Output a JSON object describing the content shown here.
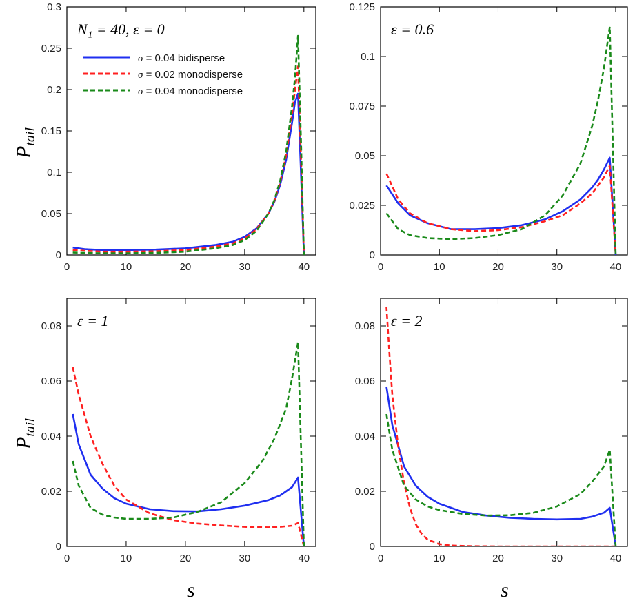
{
  "figure": {
    "ylabel_main": "P",
    "ylabel_sub": "tail",
    "xlabel": "s"
  },
  "legend": {
    "items": [
      {
        "symbol": "σ",
        "text": " = 0.04 bidisperse",
        "color": "#1f2ff0",
        "dash": "solid"
      },
      {
        "symbol": "σ",
        "text": " = 0.02 monodisperse",
        "color": "#ff2020",
        "dash": "dashed"
      },
      {
        "symbol": "σ",
        "text": " = 0.04 monodisperse",
        "color": "#1a8a1a",
        "dash": "dashed"
      }
    ]
  },
  "chart_data": [
    {
      "type": "line",
      "annotation": "N₁ = 40, ε = 0",
      "xlim": [
        0,
        42
      ],
      "ylim": [
        0,
        0.3
      ],
      "xticks": [
        0,
        10,
        20,
        30,
        40
      ],
      "yticks": [
        0,
        0.05,
        0.1,
        0.15,
        0.2,
        0.25,
        0.3
      ],
      "ytick_labels": [
        "0",
        "0.05",
        "0.1",
        "0.15",
        "0.2",
        "0.25",
        "0.3"
      ],
      "series": [
        {
          "name": "σ = 0.04 bidisperse",
          "color": "#1f2ff0",
          "dash": "solid",
          "x": [
            1,
            3,
            6,
            10,
            15,
            20,
            25,
            28,
            30,
            32,
            34,
            35,
            36,
            37,
            38,
            38.5,
            39,
            39.5,
            40
          ],
          "y": [
            0.009,
            0.007,
            0.006,
            0.006,
            0.0065,
            0.008,
            0.012,
            0.016,
            0.022,
            0.032,
            0.05,
            0.064,
            0.085,
            0.115,
            0.16,
            0.185,
            0.195,
            0.1,
            0
          ]
        },
        {
          "name": "σ = 0.02 monodisperse",
          "color": "#ff2020",
          "dash": "dashed",
          "x": [
            1,
            3,
            6,
            10,
            15,
            20,
            25,
            28,
            30,
            32,
            34,
            35,
            36,
            37,
            38,
            38.5,
            39,
            39.5,
            40
          ],
          "y": [
            0.006,
            0.005,
            0.004,
            0.004,
            0.0045,
            0.006,
            0.01,
            0.014,
            0.02,
            0.031,
            0.05,
            0.065,
            0.088,
            0.12,
            0.17,
            0.2,
            0.228,
            0.12,
            0
          ]
        },
        {
          "name": "σ = 0.04 monodisperse",
          "color": "#1a8a1a",
          "dash": "dashed",
          "x": [
            1,
            3,
            6,
            10,
            15,
            20,
            25,
            28,
            30,
            32,
            34,
            35,
            36,
            37,
            38,
            38.5,
            39,
            39.5,
            40
          ],
          "y": [
            0.003,
            0.0025,
            0.002,
            0.002,
            0.0025,
            0.004,
            0.008,
            0.012,
            0.018,
            0.029,
            0.05,
            0.066,
            0.09,
            0.125,
            0.18,
            0.215,
            0.265,
            0.14,
            0
          ]
        }
      ]
    },
    {
      "type": "line",
      "annotation": "ε = 0.6",
      "xlim": [
        0,
        42
      ],
      "ylim": [
        0,
        0.125
      ],
      "xticks": [
        0,
        10,
        20,
        30,
        40
      ],
      "yticks": [
        0,
        0.025,
        0.05,
        0.075,
        0.1,
        0.125
      ],
      "ytick_labels": [
        "0",
        "0.025",
        "0.05",
        "0.075",
        "0.1",
        "0.125"
      ],
      "series": [
        {
          "name": "σ = 0.04 bidisperse",
          "color": "#1f2ff0",
          "dash": "solid",
          "x": [
            1,
            3,
            5,
            8,
            12,
            16,
            20,
            24,
            28,
            31,
            34,
            36,
            37,
            38,
            39,
            40
          ],
          "y": [
            0.035,
            0.026,
            0.02,
            0.016,
            0.013,
            0.013,
            0.0135,
            0.015,
            0.018,
            0.022,
            0.028,
            0.034,
            0.038,
            0.043,
            0.049,
            0
          ]
        },
        {
          "name": "σ = 0.02 monodisperse",
          "color": "#ff2020",
          "dash": "dashed",
          "x": [
            1,
            3,
            5,
            8,
            12,
            16,
            20,
            24,
            28,
            31,
            34,
            36,
            37,
            38,
            39,
            40
          ],
          "y": [
            0.041,
            0.028,
            0.021,
            0.016,
            0.013,
            0.012,
            0.0125,
            0.014,
            0.017,
            0.02,
            0.026,
            0.031,
            0.035,
            0.039,
            0.045,
            0
          ]
        },
        {
          "name": "σ = 0.04 monodisperse",
          "color": "#1a8a1a",
          "dash": "dashed",
          "x": [
            1,
            3,
            5,
            8,
            12,
            16,
            20,
            24,
            28,
            31,
            34,
            36,
            37,
            38,
            39,
            40
          ],
          "y": [
            0.021,
            0.013,
            0.01,
            0.0085,
            0.008,
            0.0085,
            0.01,
            0.013,
            0.02,
            0.03,
            0.046,
            0.065,
            0.078,
            0.094,
            0.115,
            0
          ]
        }
      ]
    },
    {
      "type": "line",
      "annotation": "ε = 1",
      "xlim": [
        0,
        42
      ],
      "ylim": [
        0,
        0.09
      ],
      "xticks": [
        0,
        10,
        20,
        30,
        40
      ],
      "yticks": [
        0,
        0.02,
        0.04,
        0.06,
        0.08
      ],
      "ytick_labels": [
        "0",
        "0.02",
        "0.04",
        "0.06",
        "0.08"
      ],
      "series": [
        {
          "name": "σ = 0.04 bidisperse",
          "color": "#1f2ff0",
          "dash": "solid",
          "x": [
            1,
            2,
            4,
            6,
            8,
            10,
            14,
            18,
            22,
            26,
            30,
            34,
            36,
            38,
            39,
            40
          ],
          "y": [
            0.048,
            0.037,
            0.026,
            0.021,
            0.0175,
            0.0155,
            0.0135,
            0.0128,
            0.0127,
            0.0135,
            0.0148,
            0.0168,
            0.0185,
            0.0215,
            0.025,
            0
          ]
        },
        {
          "name": "σ = 0.02 monodisperse",
          "color": "#ff2020",
          "dash": "dashed",
          "x": [
            1,
            2,
            4,
            6,
            8,
            10,
            14,
            18,
            22,
            26,
            30,
            34,
            36,
            38,
            39,
            40
          ],
          "y": [
            0.065,
            0.055,
            0.04,
            0.03,
            0.022,
            0.017,
            0.012,
            0.0095,
            0.0083,
            0.0076,
            0.0071,
            0.0069,
            0.0071,
            0.0075,
            0.0085,
            0
          ]
        },
        {
          "name": "σ = 0.04 monodisperse",
          "color": "#1a8a1a",
          "dash": "dashed",
          "x": [
            1,
            2,
            4,
            6,
            8,
            10,
            14,
            18,
            22,
            26,
            30,
            33,
            35,
            37,
            38,
            39,
            40
          ],
          "y": [
            0.031,
            0.022,
            0.014,
            0.0115,
            0.0105,
            0.01,
            0.01,
            0.0105,
            0.0125,
            0.016,
            0.023,
            0.031,
            0.039,
            0.05,
            0.061,
            0.074,
            0
          ]
        }
      ]
    },
    {
      "type": "line",
      "annotation": "ε = 2",
      "xlim": [
        0,
        42
      ],
      "ylim": [
        0,
        0.09
      ],
      "xticks": [
        0,
        10,
        20,
        30,
        40
      ],
      "yticks": [
        0,
        0.02,
        0.04,
        0.06,
        0.08
      ],
      "ytick_labels": [
        "0",
        "0.02",
        "0.04",
        "0.06",
        "0.08"
      ],
      "series": [
        {
          "name": "σ = 0.04 bidisperse",
          "color": "#1f2ff0",
          "dash": "solid",
          "x": [
            1,
            2,
            4,
            6,
            8,
            10,
            14,
            18,
            22,
            26,
            30,
            34,
            36,
            38,
            39,
            40
          ],
          "y": [
            0.058,
            0.044,
            0.029,
            0.022,
            0.018,
            0.0155,
            0.0125,
            0.0112,
            0.0104,
            0.01,
            0.0098,
            0.01,
            0.0108,
            0.0122,
            0.014,
            0
          ]
        },
        {
          "name": "σ = 0.02 monodisperse",
          "color": "#ff2020",
          "dash": "dashed",
          "x": [
            1,
            1.5,
            2,
            3,
            4,
            5,
            6,
            7,
            8,
            10,
            12,
            15,
            20,
            30,
            40
          ],
          "y": [
            0.087,
            0.07,
            0.055,
            0.036,
            0.023,
            0.014,
            0.008,
            0.0045,
            0.0025,
            0.0008,
            0.0003,
            0.0001,
            0,
            0,
            0
          ]
        },
        {
          "name": "σ = 0.04 monodisperse",
          "color": "#1a8a1a",
          "dash": "dashed",
          "x": [
            1,
            2,
            4,
            6,
            8,
            10,
            14,
            18,
            22,
            26,
            30,
            34,
            36,
            38,
            39,
            40
          ],
          "y": [
            0.048,
            0.035,
            0.022,
            0.017,
            0.0145,
            0.0132,
            0.0118,
            0.0112,
            0.0113,
            0.0122,
            0.0145,
            0.019,
            0.0235,
            0.029,
            0.035,
            0
          ]
        }
      ]
    }
  ]
}
